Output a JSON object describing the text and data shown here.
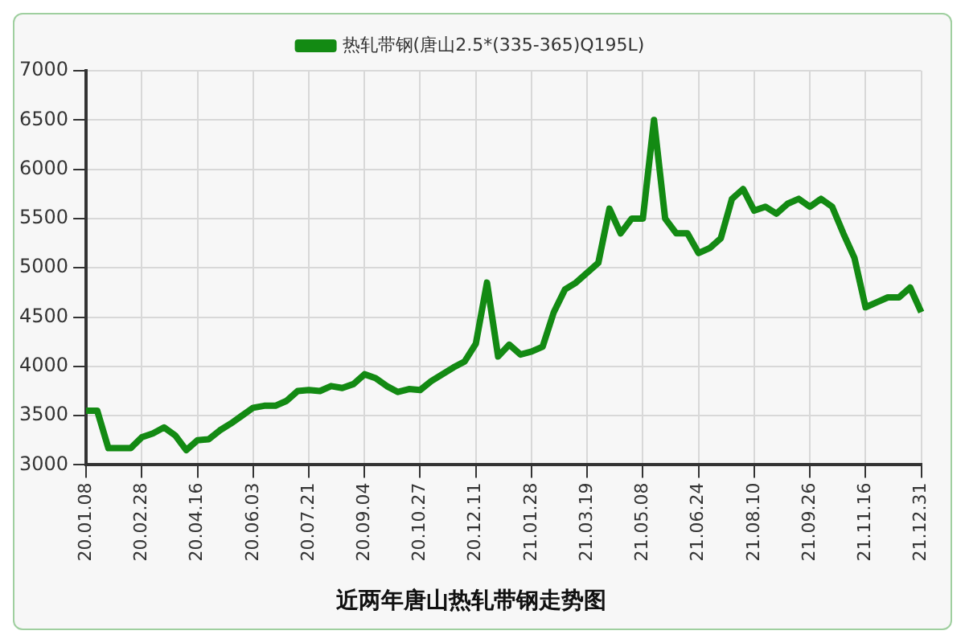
{
  "chart_data": {
    "type": "line",
    "title": "近两年唐山热轧带钢走势图",
    "categories": [
      "20.01.08",
      null,
      null,
      null,
      null,
      "20.02.28",
      null,
      null,
      null,
      null,
      "20.04.16",
      null,
      null,
      null,
      null,
      "20.06.03",
      null,
      null,
      null,
      null,
      "20.07.21",
      null,
      null,
      null,
      null,
      "20.09.04",
      null,
      null,
      null,
      null,
      "20.10.27",
      null,
      null,
      null,
      null,
      "20.12.11",
      null,
      null,
      null,
      null,
      "21.01.28",
      null,
      null,
      null,
      null,
      "21.03.19",
      null,
      null,
      null,
      null,
      "21.05.08",
      null,
      null,
      null,
      null,
      "21.06.24",
      null,
      null,
      null,
      null,
      "21.08.10",
      null,
      null,
      null,
      null,
      "21.09.26",
      null,
      null,
      null,
      null,
      "21.11.16",
      null,
      null,
      null,
      null,
      "21.12.31"
    ],
    "series": [
      {
        "name": "热轧带钢(唐山2.5*(335-365)Q195L)",
        "color": "#138a13",
        "values": [
          3550,
          3550,
          3170,
          3170,
          3170,
          3280,
          3320,
          3380,
          3300,
          3150,
          3250,
          3260,
          3350,
          3420,
          3500,
          3580,
          3600,
          3600,
          3650,
          3750,
          3760,
          3750,
          3800,
          3780,
          3820,
          3920,
          3880,
          3800,
          3740,
          3770,
          3760,
          3850,
          3920,
          3990,
          4050,
          4230,
          4850,
          4100,
          4220,
          4120,
          4150,
          4200,
          4550,
          4780,
          4850,
          4950,
          5050,
          5600,
          5350,
          5500,
          5500,
          6500,
          5500,
          5350,
          5350,
          5150,
          5200,
          5300,
          5700,
          5800,
          5580,
          5620,
          5550,
          5650,
          5700,
          5620,
          5700,
          5620,
          5350,
          5100,
          4600,
          4650,
          4700,
          4700,
          4800,
          4550
        ]
      }
    ],
    "ylim": [
      3000,
      7000
    ],
    "yticks": [
      3000,
      3500,
      4000,
      4500,
      5000,
      5500,
      6000,
      6500,
      7000
    ],
    "grid": true,
    "legend": "top",
    "marker": "none",
    "line_style": "solid"
  }
}
